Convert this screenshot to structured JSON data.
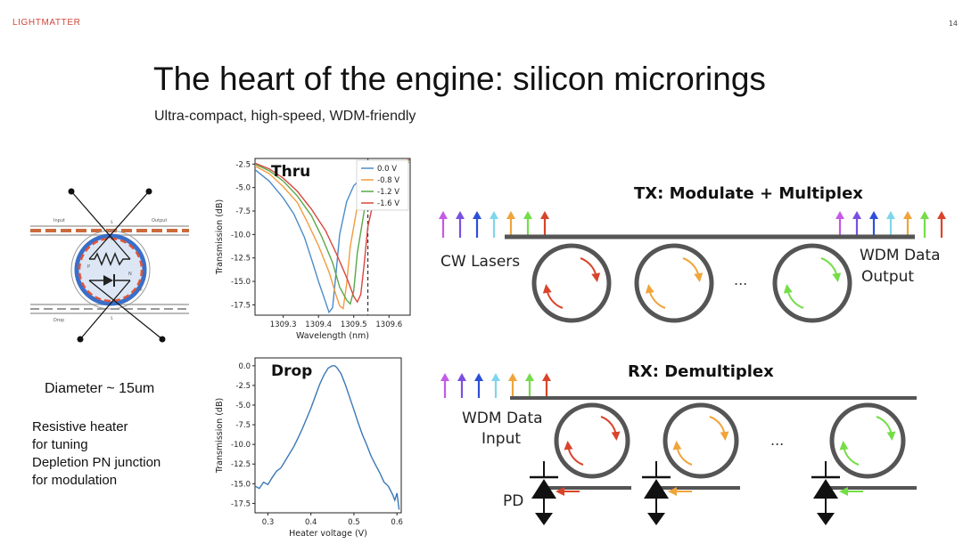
{
  "header": {
    "logo": "LIGHTMATTER",
    "slide_number": "14"
  },
  "title": "The heart of the engine: silicon microrings",
  "subtitle": "Ultra-compact, high-speed, WDM-friendly",
  "device": {
    "labels": {
      "input": "Input",
      "output": "Output",
      "drop": "Drop",
      "through": "S",
      "add": "S",
      "p": "P",
      "n": "N",
      "sub": "R"
    },
    "diameter": "Diameter ~ 15um",
    "notes": [
      "Resistive heater",
      "for tuning",
      "Depletion PN junction",
      "for modulation"
    ]
  },
  "chart_data": [
    {
      "type": "line",
      "title": "Thru",
      "xlabel": "Wavelength (nm)",
      "ylabel": "Transmission (dB)",
      "xlim": [
        1309.22,
        1309.66
      ],
      "ylim": [
        -18.6,
        -1.9
      ],
      "xticks": [
        1309.3,
        1309.4,
        1309.5,
        1309.6
      ],
      "xtick_labels": [
        "1309.3",
        "1309.4",
        "1309.5",
        "1309.6"
      ],
      "yticks": [
        -2.5,
        -5.0,
        -7.5,
        -10.0,
        -12.5,
        -15.0,
        -17.5
      ],
      "ytick_labels": [
        "-2.5",
        "-5.0",
        "-7.5",
        "-10.0",
        "-12.5",
        "-15.0",
        "-17.5"
      ],
      "legend": "top-right",
      "marker_line": 1309.54,
      "series": [
        {
          "name": "0.0 V",
          "color": "#4c8cc8",
          "x": [
            1309.22,
            1309.26,
            1309.3,
            1309.33,
            1309.36,
            1309.38,
            1309.4,
            1309.42,
            1309.43,
            1309.44,
            1309.45,
            1309.46,
            1309.48,
            1309.5,
            1309.53,
            1309.56,
            1309.6,
            1309.66
          ],
          "y": [
            -3.1,
            -4.3,
            -6.1,
            -7.8,
            -10.3,
            -12.6,
            -15.0,
            -17.2,
            -18.3,
            -17.8,
            -14.0,
            -10.0,
            -6.5,
            -4.8,
            -3.7,
            -3.1,
            -2.7,
            -2.3
          ]
        },
        {
          "name": "-0.8 V",
          "color": "#f39b3c",
          "x": [
            1309.22,
            1309.26,
            1309.3,
            1309.34,
            1309.37,
            1309.4,
            1309.43,
            1309.45,
            1309.46,
            1309.47,
            1309.48,
            1309.49,
            1309.51,
            1309.53,
            1309.56,
            1309.6,
            1309.66
          ],
          "y": [
            -2.7,
            -3.5,
            -4.9,
            -6.6,
            -8.8,
            -11.2,
            -14.0,
            -16.5,
            -17.6,
            -17.9,
            -15.2,
            -11.3,
            -7.0,
            -5.0,
            -3.6,
            -2.8,
            -2.2
          ]
        },
        {
          "name": "-1.2 V",
          "color": "#59a849",
          "x": [
            1309.22,
            1309.26,
            1309.3,
            1309.34,
            1309.38,
            1309.41,
            1309.44,
            1309.46,
            1309.48,
            1309.49,
            1309.5,
            1309.51,
            1309.53,
            1309.55,
            1309.58,
            1309.62,
            1309.66
          ],
          "y": [
            -2.5,
            -3.2,
            -4.3,
            -5.9,
            -8.0,
            -10.3,
            -13.0,
            -15.6,
            -17.0,
            -17.4,
            -16.0,
            -12.0,
            -7.4,
            -5.1,
            -3.4,
            -2.5,
            -2.1
          ]
        },
        {
          "name": "-1.6 V",
          "color": "#d9473f",
          "x": [
            1309.22,
            1309.26,
            1309.3,
            1309.34,
            1309.38,
            1309.42,
            1309.45,
            1309.48,
            1309.5,
            1309.51,
            1309.52,
            1309.53,
            1309.54,
            1309.56,
            1309.58,
            1309.61,
            1309.66
          ],
          "y": [
            -2.4,
            -3.0,
            -4.0,
            -5.4,
            -7.3,
            -9.6,
            -12.0,
            -14.6,
            -16.6,
            -17.2,
            -16.4,
            -13.0,
            -9.2,
            -5.8,
            -3.8,
            -2.6,
            -2.0
          ]
        }
      ]
    },
    {
      "type": "line",
      "title": "Drop",
      "xlabel": "Heater voltage (V)",
      "ylabel": "Transmission (dB)",
      "xlim": [
        0.27,
        0.61
      ],
      "ylim": [
        -18.7,
        1.0
      ],
      "xticks": [
        0.3,
        0.4,
        0.5,
        0.6
      ],
      "xtick_labels": [
        "0.3",
        "0.4",
        "0.5",
        "0.6"
      ],
      "yticks": [
        0.0,
        -2.5,
        -5.0,
        -7.5,
        -10.0,
        -12.5,
        -15.0,
        -17.5
      ],
      "ytick_labels": [
        "0.0",
        "-2.5",
        "-5.0",
        "-7.5",
        "-10.0",
        "-12.5",
        "-15.0",
        "-17.5"
      ],
      "series": [
        {
          "color": "#3a77b5",
          "x": [
            0.27,
            0.28,
            0.29,
            0.3,
            0.31,
            0.32,
            0.33,
            0.34,
            0.35,
            0.36,
            0.37,
            0.38,
            0.39,
            0.4,
            0.41,
            0.42,
            0.43,
            0.44,
            0.45,
            0.455,
            0.46,
            0.47,
            0.48,
            0.49,
            0.5,
            0.51,
            0.52,
            0.53,
            0.54,
            0.55,
            0.56,
            0.57,
            0.58,
            0.59,
            0.595,
            0.6,
            0.605
          ],
          "y": [
            -15.3,
            -15.6,
            -14.8,
            -15.1,
            -14.2,
            -13.4,
            -13.0,
            -12.1,
            -11.2,
            -10.3,
            -9.2,
            -8.0,
            -6.7,
            -5.4,
            -3.9,
            -2.4,
            -1.2,
            -0.3,
            0.0,
            0.0,
            -0.2,
            -1.0,
            -2.4,
            -4.0,
            -5.6,
            -7.3,
            -8.8,
            -10.1,
            -11.5,
            -12.6,
            -13.6,
            -14.8,
            -15.3,
            -16.4,
            -17.1,
            -16.2,
            -18.3
          ]
        }
      ]
    }
  ],
  "tx": {
    "title": "TX: Modulate + Multiplex",
    "lasers_label": "CW Lasers",
    "output_label_1": "WDM Data",
    "output_label_2": "Output",
    "ellipsis": "..."
  },
  "rx": {
    "title": "RX: Demultiplex",
    "input_label_1": "WDM Data",
    "input_label_2": "Input",
    "pd_label": "PD",
    "ellipsis": "..."
  },
  "colors": {
    "logo": "#d2473a",
    "violet": "#c45ae6",
    "purple": "#7b4fe0",
    "blue": "#2d4fd9",
    "cyan": "#7fd6ea",
    "orange": "#f0a43a",
    "green": "#74dd47",
    "red": "#d9442c",
    "ring": "#555555",
    "bus": "#555555"
  }
}
